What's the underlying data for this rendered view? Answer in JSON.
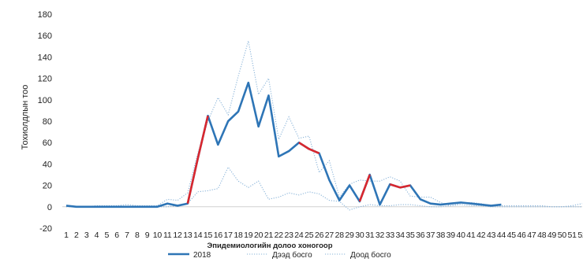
{
  "chart_data": {
    "type": "line",
    "title": "",
    "xlabel": "Эпидемиологийн долоо хоногоор",
    "ylabel": "Тохиолдлын тоо",
    "x": [
      1,
      2,
      3,
      4,
      5,
      6,
      7,
      8,
      9,
      10,
      11,
      12,
      13,
      14,
      15,
      16,
      17,
      18,
      19,
      20,
      21,
      22,
      23,
      24,
      25,
      26,
      27,
      28,
      29,
      30,
      31,
      32,
      33,
      34,
      35,
      36,
      37,
      38,
      39,
      40,
      41,
      42,
      43,
      44,
      45,
      46,
      47,
      48,
      49,
      50,
      51,
      52
    ],
    "ylim": [
      -20,
      180
    ],
    "yticks": [
      -20,
      0,
      20,
      40,
      60,
      80,
      100,
      120,
      140,
      160,
      180
    ],
    "grid": false,
    "legend_position": "bottom",
    "series": [
      {
        "name": "2018",
        "style": "solid",
        "color": "#2e75b6",
        "highlight_color": "#d9272e",
        "highlight_segments": [
          [
            13,
            15
          ],
          [
            24,
            26
          ],
          [
            30,
            31
          ],
          [
            33,
            35
          ]
        ],
        "values": [
          1,
          0,
          0,
          0,
          0,
          0,
          0,
          0,
          0,
          0,
          3,
          1,
          3,
          45,
          85,
          58,
          80,
          89,
          116,
          75,
          104,
          47,
          52,
          60,
          54,
          50,
          25,
          6,
          20,
          5,
          30,
          2,
          21,
          18,
          20,
          7,
          3,
          2,
          3,
          4,
          3,
          2,
          1,
          2,
          null,
          null,
          null,
          null,
          null,
          null,
          null,
          null
        ]
      },
      {
        "name": "Дээд босго",
        "style": "dotted",
        "color": "#8ab4d9",
        "values": [
          1,
          0,
          0,
          1,
          1,
          1,
          2,
          1,
          1,
          1,
          7,
          6,
          13,
          50,
          80,
          102,
          86,
          122,
          155,
          105,
          120,
          63,
          84,
          64,
          66,
          32,
          43,
          9,
          21,
          25,
          24,
          24,
          28,
          24,
          10,
          9,
          9,
          4,
          1,
          3,
          4,
          3,
          1,
          1,
          1,
          1,
          1,
          1,
          0,
          0,
          1,
          3
        ]
      },
      {
        "name": "Доод босго",
        "style": "dotted",
        "color": "#8ab4d9",
        "values": [
          0,
          0,
          0,
          0,
          0,
          0,
          0,
          0,
          0,
          0,
          0,
          1,
          3,
          14,
          15,
          17,
          37,
          24,
          18,
          24,
          7,
          9,
          13,
          11,
          14,
          12,
          6,
          5,
          -3,
          0,
          2,
          1,
          1,
          2,
          2,
          1,
          0,
          0,
          1,
          2,
          1,
          1,
          0,
          0,
          0,
          0,
          0,
          0,
          0,
          0,
          0,
          0
        ]
      }
    ]
  }
}
